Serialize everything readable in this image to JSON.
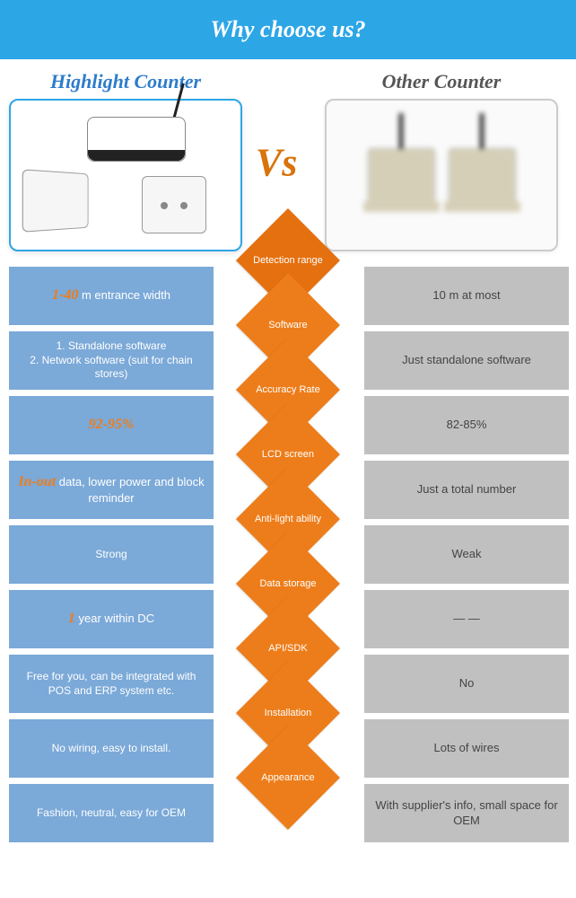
{
  "header": {
    "title": "Why choose us?"
  },
  "products": {
    "left_title": "Highlight Counter",
    "right_title": "Other Counter",
    "vs_label": "Vs"
  },
  "colors": {
    "header_bg": "#2da6e6",
    "diamond_bg": "#ed7d1a",
    "left_cell_bg": "#7ba9d8",
    "right_cell_bg": "#c0c0c0",
    "accent": "#ed7d1a",
    "left_title_color": "#2d7ccc",
    "right_title_color": "#555555"
  },
  "comparison": [
    {
      "category": "Detection range",
      "left_accent": "1-40",
      "left_rest": " m entrance width",
      "right": "10 m at most"
    },
    {
      "category": "Software",
      "left_plain": "1. Standalone software\n2. Network software (suit for chain stores)",
      "right": "Just standalone software"
    },
    {
      "category": "Accuracy Rate",
      "left_accent": "92-95%",
      "left_rest": "",
      "right": "82-85%"
    },
    {
      "category": "LCD screen",
      "left_accent": "In-out",
      "left_rest": " data, lower power and block reminder",
      "right": "Just a total number"
    },
    {
      "category": "Anti-light ability",
      "left_plain": "Strong",
      "right": "Weak"
    },
    {
      "category": "Data storage",
      "left_accent": "1",
      "left_rest": " year within DC",
      "right": "— —"
    },
    {
      "category": "API/SDK",
      "left_plain": "Free for you, can be integrated with POS and ERP system etc.",
      "right": "No"
    },
    {
      "category": "Installation",
      "left_plain": "No wiring, easy to install.",
      "right": "Lots of wires"
    },
    {
      "category": "Appearance",
      "left_plain": "Fashion, neutral, easy for OEM",
      "right": "With supplier's info, small space for OEM"
    }
  ]
}
